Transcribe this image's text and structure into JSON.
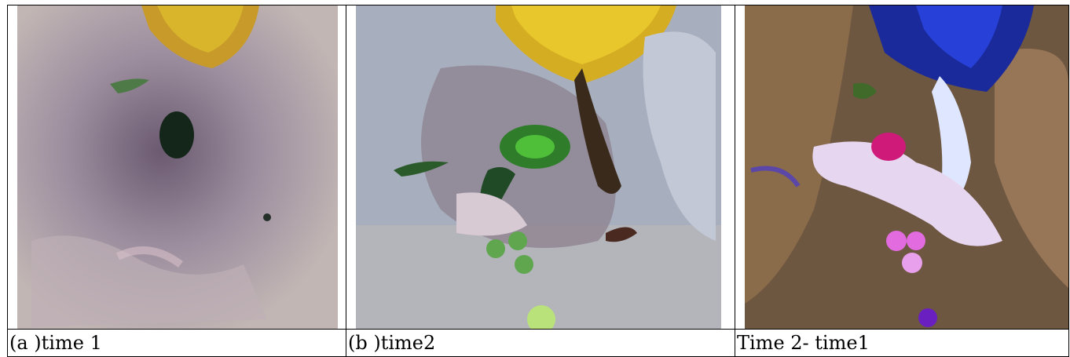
{
  "table": {
    "rows": [
      [
        "(a )time 1",
        "(b )time2",
        "Time 2- time1"
      ]
    ]
  }
}
